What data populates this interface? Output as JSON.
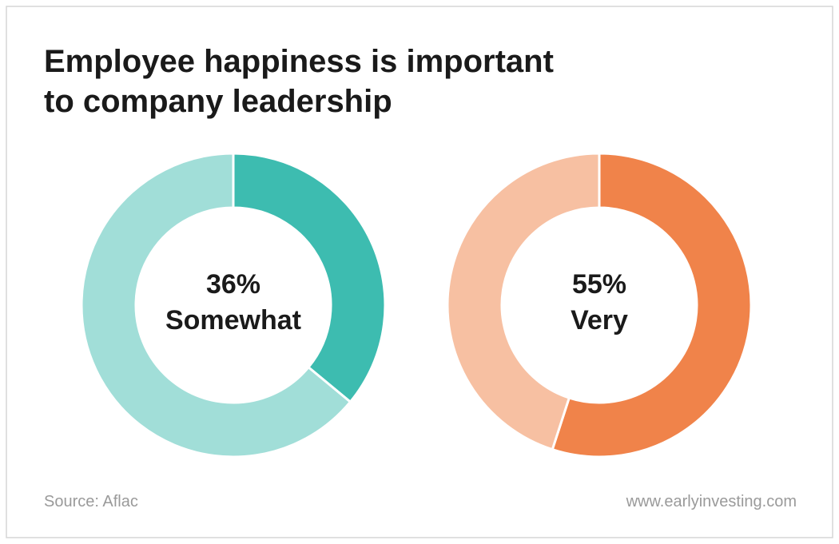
{
  "title_lines": [
    "Employee happiness is important",
    "to company leadership"
  ],
  "source": "Source: Aflac",
  "website": "www.earlyinvesting.com",
  "chart_data": [
    {
      "type": "donut",
      "categories": [
        "Somewhat",
        null
      ],
      "values": [
        36,
        64
      ],
      "value_labels": [
        "36%",
        null
      ],
      "colors": [
        "#3dbcb0",
        "#a1ded8"
      ]
    },
    {
      "type": "donut",
      "categories": [
        "Very",
        null
      ],
      "values": [
        55,
        45
      ],
      "value_labels": [
        "55%",
        null
      ],
      "colors": [
        "#f0834a",
        "#f7c0a2"
      ]
    }
  ]
}
